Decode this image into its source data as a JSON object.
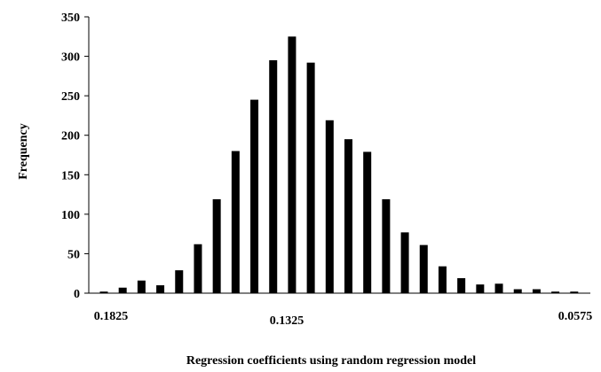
{
  "chart_data": {
    "type": "bar",
    "xlabel": "Regression coefficients using random regression model",
    "ylabel": "Frequency",
    "ylim": [
      0,
      350
    ],
    "yticks": [
      "0",
      "50",
      "100",
      "150",
      "200",
      "250",
      "300",
      "350"
    ],
    "xtick_labels": [
      "0.1825",
      "0.1325",
      "0.0575"
    ],
    "grid": false,
    "legend": "none",
    "bar_color": "#000000",
    "values": [
      2,
      7,
      16,
      10,
      29,
      62,
      119,
      180,
      245,
      295,
      325,
      292,
      219,
      195,
      179,
      119,
      77,
      61,
      34,
      19,
      11,
      12,
      5,
      5,
      2,
      2
    ]
  }
}
